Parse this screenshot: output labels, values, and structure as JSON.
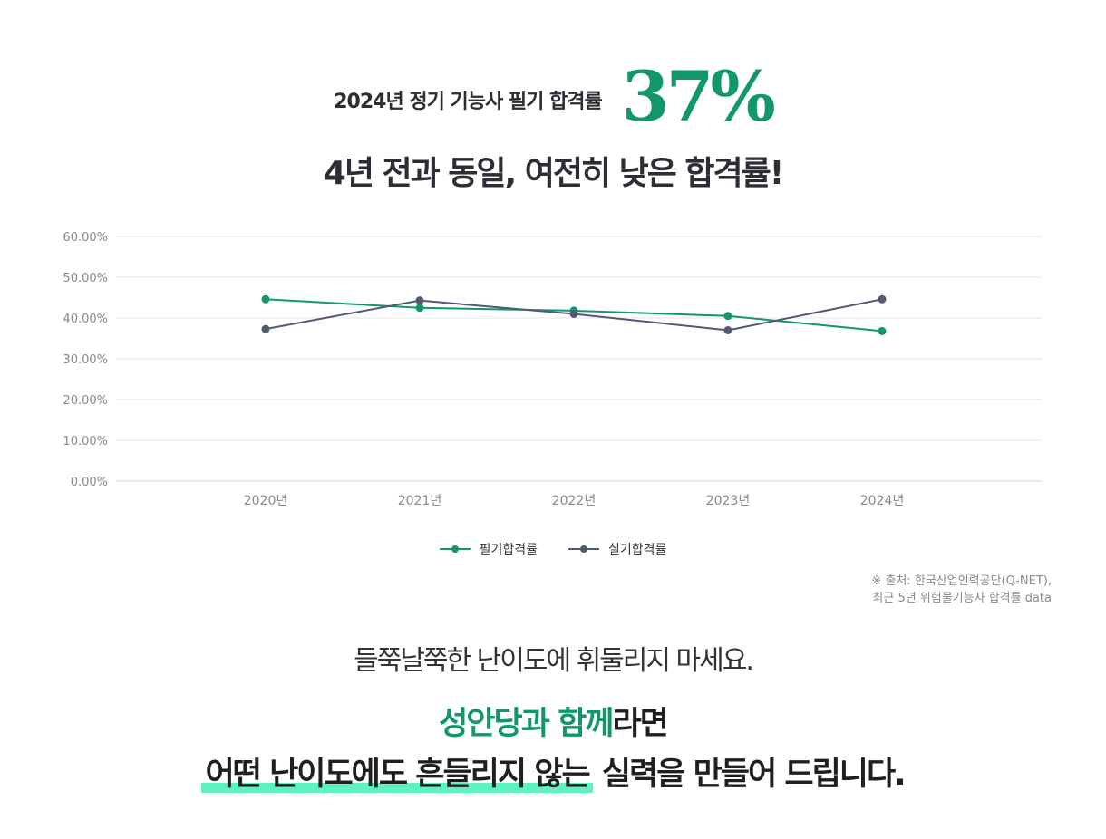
{
  "header": {
    "headline": "2024년 정기 기능사 필기 합격률",
    "rate": "37%",
    "subhead": "4년 전과 동일, 여전히 낮은 합격률!"
  },
  "chart_data": {
    "type": "line",
    "categories": [
      "2020년",
      "2021년",
      "2022년",
      "2023년",
      "2024년"
    ],
    "ytick_labels": [
      "0.00%",
      "10.00%",
      "20.00%",
      "30.00%",
      "40.00%",
      "50.00%",
      "60.00%"
    ],
    "ylim": [
      0,
      60
    ],
    "grid": true,
    "legend_position": "bottom",
    "series": [
      {
        "name": "필기합격률",
        "color": "#12976a",
        "values": [
          44.6,
          42.5,
          41.8,
          40.5,
          36.8
        ]
      },
      {
        "name": "실기합격률",
        "color": "#525a73",
        "values": [
          37.3,
          44.3,
          41.0,
          37.0,
          44.6
        ]
      }
    ]
  },
  "legend": {
    "items": [
      {
        "label": "필기합격률",
        "color": "#12976a"
      },
      {
        "label": "실기합격률",
        "color": "#525a73"
      }
    ]
  },
  "source": {
    "line1": "※ 출처: 한국산업인력공단(Q-NET),",
    "line2": "최근 5년 위험물기능사 합격률 data"
  },
  "promo": {
    "tagline": "들쭉날쭉한 난이도에 휘둘리지 마세요.",
    "line1_accent": "성안당과 함께",
    "line1_rest": "라면",
    "line2_highlight": "어떤 난이도에도 흔들리지 않는",
    "line2_rest": " 실력을 만들어 드립니다."
  },
  "colors": {
    "accent": "#12976a",
    "highlight": "#5ef2bf",
    "text_dark": "#2d2d33"
  }
}
